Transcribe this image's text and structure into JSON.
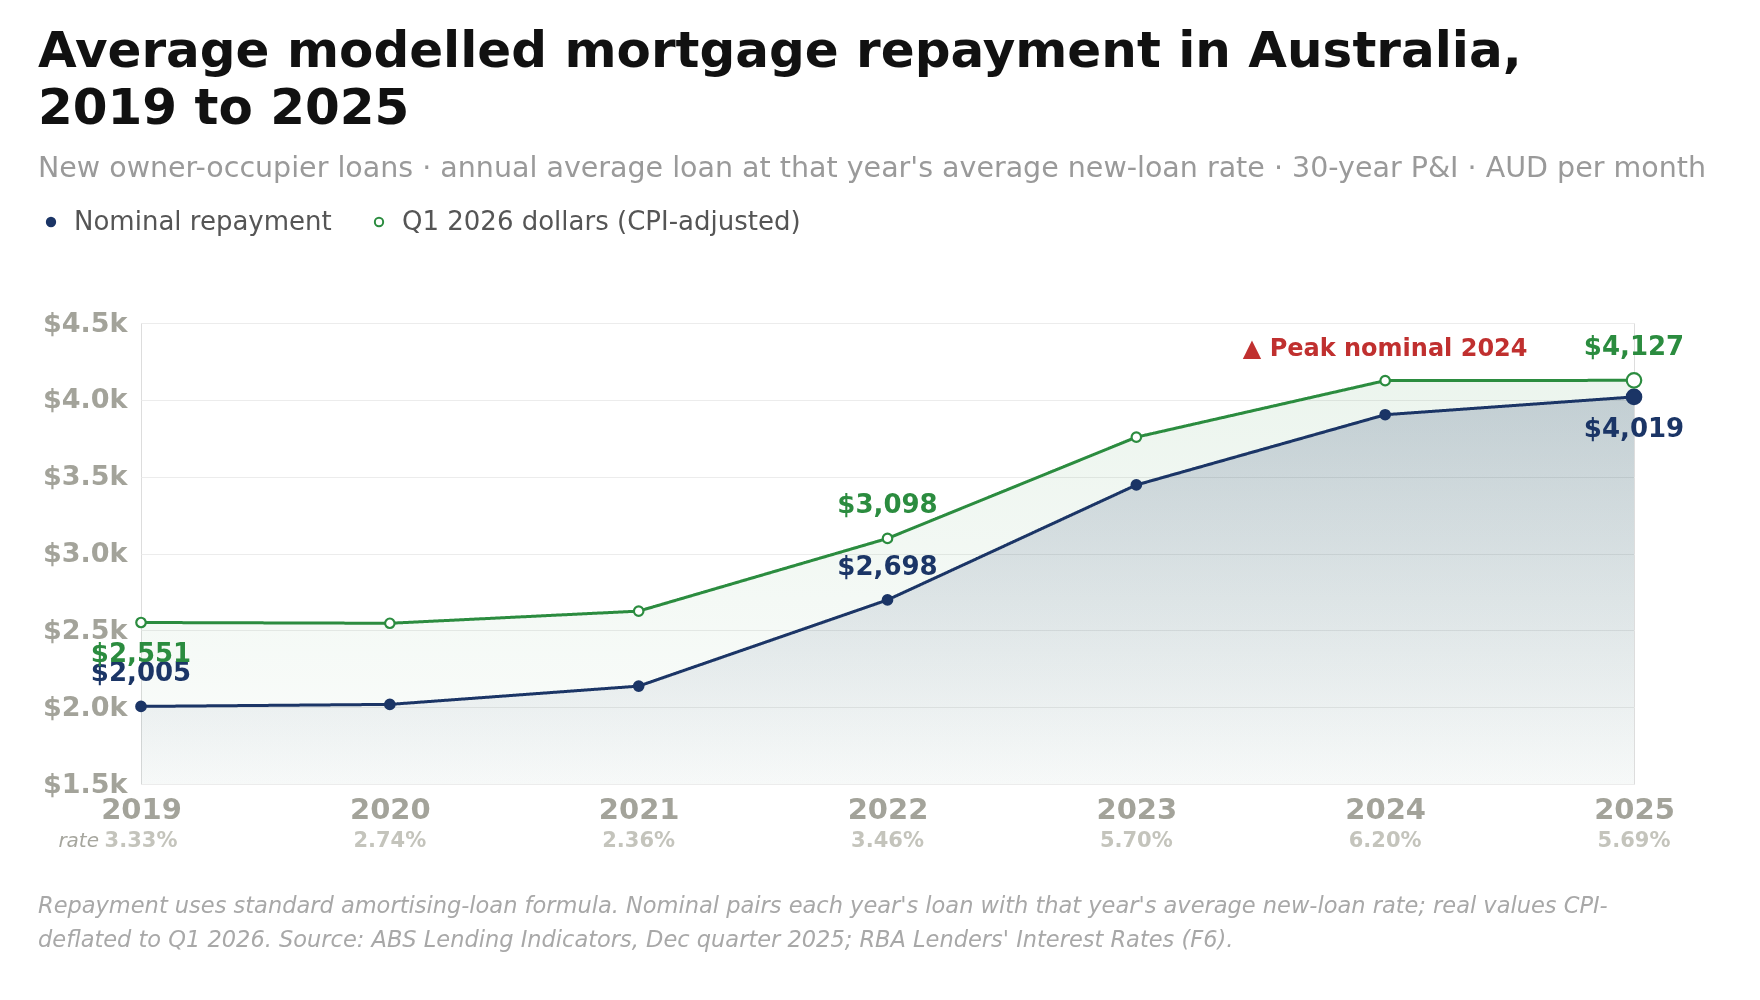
{
  "chart_data": {
    "type": "area",
    "title": "Average modelled mortgage repayment in Australia, 2019 to 2025",
    "subtitle": "New owner-occupier loans · annual average loan at that year's average new-loan rate · 30-year P&I · AUD per month",
    "categories": [
      "2019",
      "2020",
      "2021",
      "2022",
      "2023",
      "2024",
      "2025"
    ],
    "series": [
      {
        "name": "Nominal repayment",
        "color": "#1b3566",
        "values": [
          2005,
          2018,
          2137,
          2698,
          3446,
          3903,
          4019
        ],
        "value_labels": [
          "$2,005",
          null,
          null,
          "$2,698",
          null,
          null,
          "$4,019"
        ]
      },
      {
        "name": "Q1 2026 dollars (CPI-adjusted)",
        "color": "#2b8c3f",
        "values": [
          2551,
          2546,
          2625,
          3098,
          3757,
          4125,
          4127
        ],
        "value_labels": [
          "$2,551",
          null,
          null,
          "$3,098",
          null,
          null,
          "$4,127"
        ]
      }
    ],
    "ylim": [
      1500,
      4500
    ],
    "yticks": [
      {
        "value": 1500,
        "label": "$1.5k"
      },
      {
        "value": 2000,
        "label": "$2.0k"
      },
      {
        "value": 2500,
        "label": "$2.5k"
      },
      {
        "value": 3000,
        "label": "$3.0k"
      },
      {
        "value": 3500,
        "label": "$3.5k"
      },
      {
        "value": 4000,
        "label": "$4.0k"
      },
      {
        "value": 4500,
        "label": "$4.5k"
      }
    ],
    "grid": "y",
    "legend": "top left",
    "marker": "circle",
    "line_style": "solid",
    "annotations": [
      "▲ Peak nominal 2024",
      "3.33%",
      "2.74%",
      "2.36%",
      "3.46%",
      "5.70%",
      "6.20%",
      "5.69%",
      "rate",
      "Repayment uses standard amortising-loan formula. Nominal pairs each year's loan with that year's average new-loan rate; real values CPI-deflated to Q1 2026. Source: ABS Lending Indicators, Dec quarter 2025; RBA Lenders' Interest Rates (F6)."
    ]
  }
}
